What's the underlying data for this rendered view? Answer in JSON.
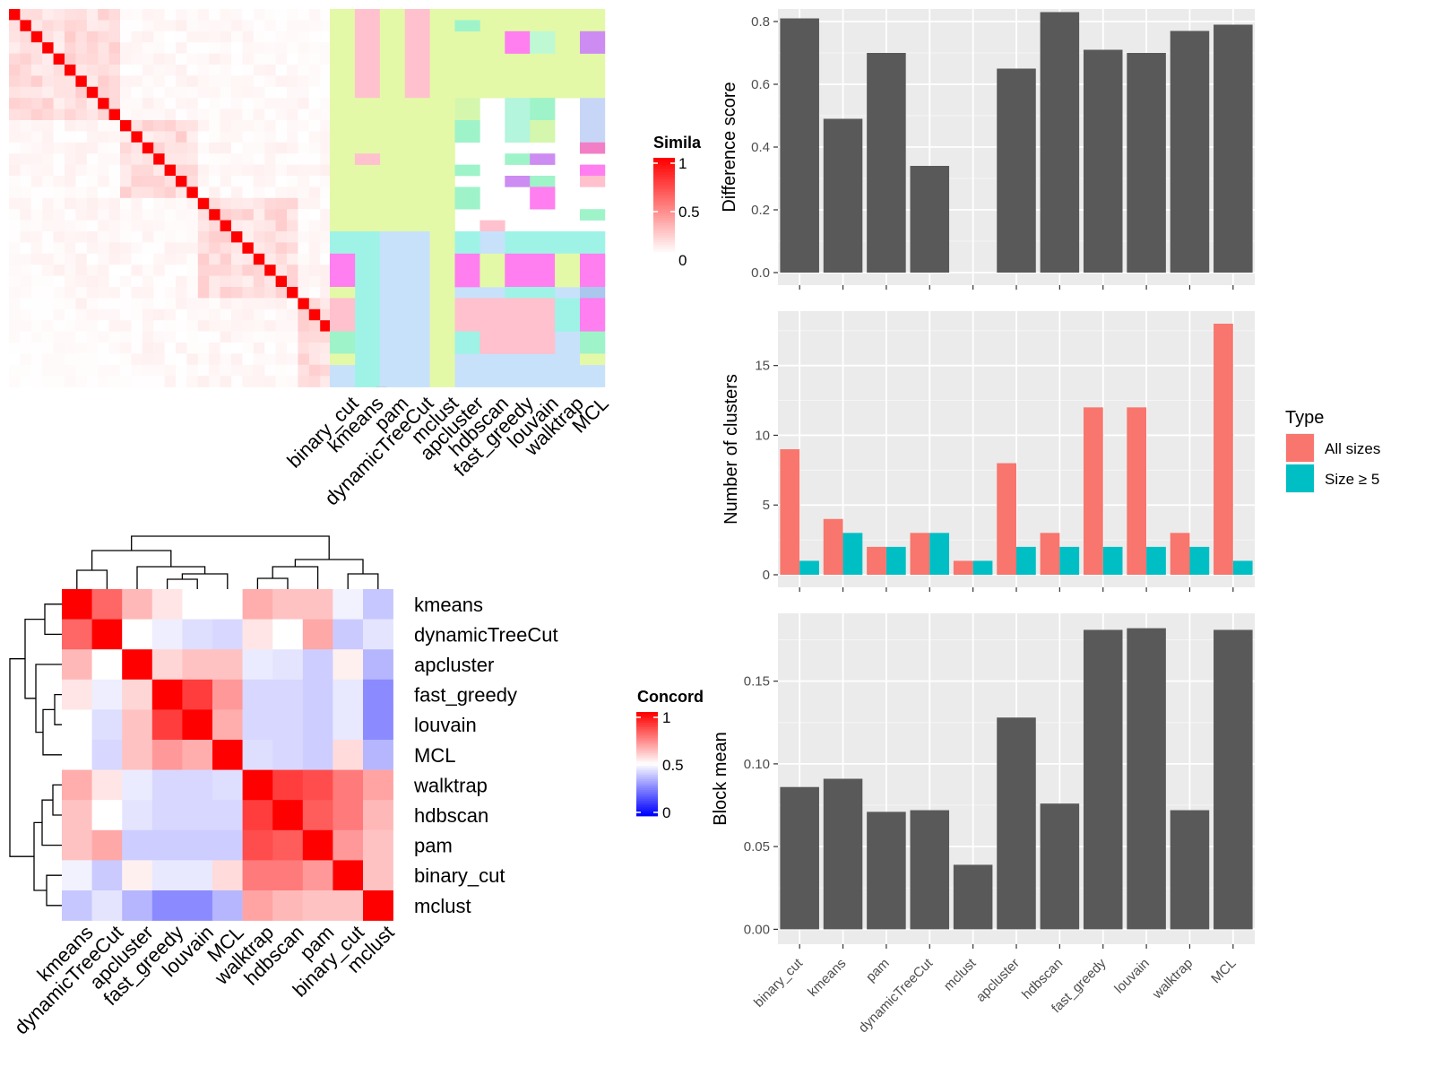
{
  "chart_data": [
    {
      "type": "heatmap",
      "name": "similarity",
      "legend": {
        "title": "Similarity",
        "visible_title": "Simila",
        "ticks": [
          "1",
          "0.5",
          "0"
        ],
        "colors": {
          "low": "#ffffff",
          "high": "#ff0000"
        }
      },
      "column_labels": [
        "binary_cut",
        "kmeans",
        "pam",
        "dynamicTreeCut",
        "mclust",
        "apcluster",
        "hdbscan",
        "fast_greedy",
        "louvain",
        "walktrap",
        "MCL"
      ],
      "n_rows": 34,
      "bands": [
        {
          "rows": [
            0,
            8
          ],
          "cols": [
            [
              0,
              1,
              "#e3f9a7"
            ],
            [
              1,
              2,
              "#ffc1cd"
            ],
            [
              2,
              3,
              "#e3f9a7"
            ],
            [
              3,
              4,
              "#ffc1cd"
            ],
            [
              4,
              11,
              "#e3f9a7"
            ]
          ]
        },
        {
          "rows": [
            1,
            2
          ],
          "cols": [
            [
              5,
              6,
              "#9ff3c9"
            ]
          ]
        },
        {
          "rows": [
            2,
            4
          ],
          "cols": [
            [
              7,
              8,
              "#ff7ef0"
            ],
            [
              8,
              9,
              "#bff9d4"
            ],
            [
              10,
              11,
              "#cd8cf2"
            ]
          ]
        },
        {
          "rows": [
            8,
            20
          ],
          "cols": [
            [
              0,
              1,
              "#e3f9a7"
            ],
            [
              1,
              2,
              "#e3f9a7"
            ],
            [
              2,
              4,
              "#e3f9a7"
            ],
            [
              4,
              5,
              "#e3f9a7"
            ]
          ]
        },
        {
          "rows": [
            8,
            10
          ],
          "cols": [
            [
              5,
              6,
              "#d4f7ad"
            ],
            [
              7,
              8,
              "#b3f5dd"
            ],
            [
              8,
              9,
              "#9ff3c9"
            ],
            [
              10,
              11,
              "#c7d6f6"
            ]
          ]
        },
        {
          "rows": [
            10,
            12
          ],
          "cols": [
            [
              5,
              6,
              "#9ff3c9"
            ],
            [
              7,
              8,
              "#b3f5dd"
            ],
            [
              8,
              9,
              "#d4f7ad"
            ],
            [
              10,
              11,
              "#c7d6f6"
            ]
          ]
        },
        {
          "rows": [
            12,
            13
          ],
          "cols": [
            [
              10,
              11,
              "#f27fc6"
            ]
          ]
        },
        {
          "rows": [
            13,
            14
          ],
          "cols": [
            [
              1,
              2,
              "#ffc1cd"
            ],
            [
              7,
              8,
              "#9ff3c9"
            ],
            [
              8,
              9,
              "#cd8cf2"
            ]
          ]
        },
        {
          "rows": [
            14,
            15
          ],
          "cols": [
            [
              5,
              6,
              "#9ff3c9"
            ],
            [
              10,
              11,
              "#ff7ef0"
            ]
          ]
        },
        {
          "rows": [
            15,
            16
          ],
          "cols": [
            [
              7,
              8,
              "#cd8cf2"
            ],
            [
              8,
              9,
              "#9ff3c9"
            ],
            [
              10,
              11,
              "#ffc1cd"
            ]
          ]
        },
        {
          "rows": [
            16,
            18
          ],
          "cols": [
            [
              5,
              6,
              "#9ff3c9"
            ],
            [
              8,
              9,
              "#ff7ef0"
            ]
          ]
        },
        {
          "rows": [
            18,
            19
          ],
          "cols": [
            [
              10,
              11,
              "#9ff3c9"
            ]
          ]
        },
        {
          "rows": [
            19,
            20
          ],
          "cols": [
            [
              6,
              7,
              "#ffc1cd"
            ]
          ]
        },
        {
          "rows": [
            20,
            34
          ],
          "cols": [
            [
              0,
              1,
              "#c7e1fb"
            ],
            [
              1,
              2,
              "#9ff3e6"
            ],
            [
              2,
              4,
              "#c7e1fb"
            ],
            [
              4,
              5,
              "#e3f9a7"
            ],
            [
              5,
              11,
              "#c7e1fb"
            ]
          ]
        },
        {
          "rows": [
            20,
            22
          ],
          "cols": [
            [
              0,
              1,
              "#9ff3e6"
            ],
            [
              5,
              6,
              "#9ff3e6"
            ],
            [
              7,
              11,
              "#9ff3e6"
            ]
          ]
        },
        {
          "rows": [
            22,
            25
          ],
          "cols": [
            [
              0,
              1,
              "#ff7ef0"
            ],
            [
              5,
              6,
              "#ff7ef0"
            ],
            [
              6,
              7,
              "#e3f9a7"
            ],
            [
              7,
              9,
              "#ff7ef0"
            ],
            [
              9,
              10,
              "#e3f9a7"
            ],
            [
              10,
              11,
              "#ff7ef0"
            ]
          ]
        },
        {
          "rows": [
            25,
            26
          ],
          "cols": [
            [
              0,
              1,
              "#e3f9a7"
            ],
            [
              7,
              9,
              "#9ff3e6"
            ],
            [
              10,
              11,
              "#aac7ee"
            ]
          ]
        },
        {
          "rows": [
            26,
            29
          ],
          "cols": [
            [
              0,
              1,
              "#ffc1cd"
            ],
            [
              5,
              9,
              "#ffc1cd"
            ],
            [
              9,
              10,
              "#9ff3e6"
            ],
            [
              10,
              11,
              "#ff7ef0"
            ]
          ]
        },
        {
          "rows": [
            29,
            31
          ],
          "cols": [
            [
              0,
              1,
              "#9ff3c9"
            ],
            [
              5,
              6,
              "#9ff3e6"
            ],
            [
              6,
              9,
              "#ffc1cd"
            ],
            [
              10,
              11,
              "#9ff3c9"
            ]
          ]
        },
        {
          "rows": [
            31,
            32
          ],
          "cols": [
            [
              0,
              1,
              "#e3f9a7"
            ],
            [
              10,
              11,
              "#e3f9a7"
            ]
          ]
        }
      ]
    },
    {
      "type": "heatmap",
      "name": "concordance",
      "legend": {
        "title": "Concordance",
        "visible_title": "Concord",
        "ticks": [
          "1",
          "0.5",
          "0"
        ],
        "colors": {
          "low": "#0000ff",
          "mid": "#ffffff",
          "high": "#ff0000"
        }
      },
      "row_labels": [
        "kmeans",
        "dynamicTreeCut",
        "apcluster",
        "fast_greedy",
        "louvain",
        "MCL",
        "walktrap",
        "hdbscan",
        "pam",
        "binary_cut",
        "mclust"
      ],
      "col_labels": [
        "kmeans",
        "dynamicTreeCut",
        "apcluster",
        "fast_greedy",
        "louvain",
        "MCL",
        "walktrap",
        "hdbscan",
        "pam",
        "binary_cut",
        "mclust"
      ],
      "values": [
        [
          1.0,
          0.8,
          0.64,
          0.55,
          0.5,
          0.5,
          0.66,
          0.62,
          0.62,
          0.46,
          0.33
        ],
        [
          0.8,
          1.0,
          0.5,
          0.45,
          0.4,
          0.38,
          0.55,
          0.5,
          0.67,
          0.34,
          0.42
        ],
        [
          0.64,
          0.5,
          1.0,
          0.58,
          0.62,
          0.62,
          0.44,
          0.42,
          0.35,
          0.53,
          0.28
        ],
        [
          0.55,
          0.45,
          0.58,
          1.0,
          0.88,
          0.7,
          0.38,
          0.38,
          0.35,
          0.43,
          0.15
        ],
        [
          0.5,
          0.4,
          0.62,
          0.88,
          1.0,
          0.66,
          0.38,
          0.38,
          0.35,
          0.43,
          0.15
        ],
        [
          0.5,
          0.38,
          0.62,
          0.7,
          0.66,
          1.0,
          0.4,
          0.38,
          0.35,
          0.57,
          0.28
        ],
        [
          0.66,
          0.55,
          0.44,
          0.38,
          0.38,
          0.4,
          1.0,
          0.88,
          0.85,
          0.76,
          0.68
        ],
        [
          0.62,
          0.5,
          0.42,
          0.38,
          0.38,
          0.38,
          0.88,
          1.0,
          0.82,
          0.76,
          0.64
        ],
        [
          0.62,
          0.67,
          0.35,
          0.35,
          0.35,
          0.35,
          0.85,
          0.82,
          1.0,
          0.7,
          0.62
        ],
        [
          0.46,
          0.34,
          0.53,
          0.43,
          0.43,
          0.57,
          0.76,
          0.76,
          0.7,
          1.0,
          0.62
        ],
        [
          0.33,
          0.42,
          0.28,
          0.15,
          0.15,
          0.28,
          0.68,
          0.64,
          0.62,
          0.62,
          1.0
        ]
      ]
    },
    {
      "type": "bar",
      "name": "difference",
      "categories": [
        "binary_cut",
        "kmeans",
        "pam",
        "dynamicTreeCut",
        "mclust",
        "apcluster",
        "hdbscan",
        "fast_greedy",
        "louvain",
        "walktrap",
        "MCL"
      ],
      "values": [
        0.81,
        0.49,
        0.7,
        0.34,
        0,
        0.65,
        0.83,
        0.71,
        0.7,
        0.77,
        0.79
      ],
      "ylabel": "Difference score",
      "ylim": [
        -0.04,
        0.84
      ],
      "yticks": [
        "0.0",
        "0.2",
        "0.4",
        "0.6",
        "0.8"
      ],
      "bar_color": "#595959",
      "grid": true
    },
    {
      "type": "bar",
      "name": "clusters",
      "categories": [
        "binary_cut",
        "kmeans",
        "pam",
        "dynamicTreeCut",
        "mclust",
        "apcluster",
        "hdbscan",
        "fast_greedy",
        "louvain",
        "walktrap",
        "MCL"
      ],
      "series": [
        {
          "name": "All sizes",
          "color": "#f8766d",
          "values": [
            9,
            4,
            2,
            3,
            1,
            8,
            3,
            12,
            12,
            3,
            18
          ]
        },
        {
          "name": "Size ≥ 5",
          "color": "#00bfc4",
          "values": [
            1,
            3,
            2,
            3,
            1,
            2,
            2,
            2,
            2,
            2,
            1
          ]
        }
      ],
      "ylabel": "Number of clusters",
      "ylim": [
        -0.9,
        18.9
      ],
      "yticks": [
        "0",
        "5",
        "10",
        "15"
      ],
      "legend": {
        "title": "Type",
        "position": "right"
      },
      "grid": true
    },
    {
      "type": "bar",
      "name": "block",
      "categories": [
        "binary_cut",
        "kmeans",
        "pam",
        "dynamicTreeCut",
        "mclust",
        "apcluster",
        "hdbscan",
        "fast_greedy",
        "louvain",
        "walktrap",
        "MCL"
      ],
      "values": [
        0.086,
        0.091,
        0.071,
        0.072,
        0.039,
        0.128,
        0.076,
        0.181,
        0.182,
        0.072,
        0.181
      ],
      "ylabel": "Block mean",
      "ylim": [
        -0.009,
        0.191
      ],
      "yticks": [
        "0.00",
        "0.05",
        "0.10",
        "0.15"
      ],
      "bar_color": "#595959",
      "grid": true
    }
  ]
}
